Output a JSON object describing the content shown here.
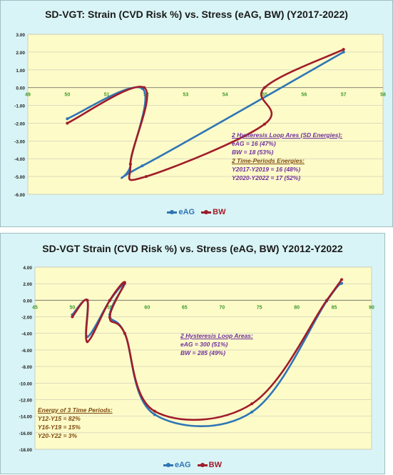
{
  "colors": {
    "eAG": "#2e75b6",
    "BW": "#a01c2a",
    "plot_bg": "#fdfbc8",
    "panel_bg": "#d9f4f6",
    "x_tick": "#3d9a2c",
    "ann_purple": "#7030a0",
    "ann_brown": "#7f4b12"
  },
  "chart_data": [
    {
      "type": "line",
      "title": "SD-VGT:  Strain (CVD Risk %) vs. Stress (eAG, BW)  (Y2017-2022)",
      "xlim": [
        49,
        58
      ],
      "ylim": [
        -6,
        3
      ],
      "x_ticks": [
        "49",
        "50",
        "51",
        "52",
        "53",
        "54",
        "55",
        "56",
        "57",
        "58"
      ],
      "y_ticks": [
        "3.00",
        "2.00",
        "1.00",
        "0.00",
        "-1.00",
        "-2.00",
        "-3.00",
        "-4.00",
        "-5.00",
        "-6.00"
      ],
      "grid": "horizontal",
      "legend": "bottom",
      "series": [
        {
          "name": "eAG",
          "points": [
            [
              50,
              -1.75
            ],
            [
              51.9,
              -0.05
            ],
            [
              51.6,
              -4.3
            ],
            [
              51.9,
              -4.4
            ],
            [
              57,
              2.0
            ]
          ]
        },
        {
          "name": "BW",
          "points": [
            [
              50,
              -2.0
            ],
            [
              51.95,
              0.0
            ],
            [
              51.6,
              -4.3
            ],
            [
              52,
              -5.0
            ],
            [
              55,
              -2.05
            ],
            [
              55,
              0.0
            ],
            [
              57,
              2.15
            ]
          ]
        }
      ],
      "annotations": [
        {
          "text": "2 Hysteresis Loop Ares (SD Energies):",
          "underline": true,
          "color": "purple"
        },
        {
          "text": "eAG = 16 (47%)",
          "color": "purple"
        },
        {
          "text": "BW = 18 (53%)",
          "color": "purple"
        },
        {
          "text": "2 Time-Periods Energies:",
          "underline": true,
          "color": "brown"
        },
        {
          "text": "Y2017-Y2019 = 16 (48%)",
          "color": "purple"
        },
        {
          "text": "Y2020-Y2022 = 17 (52%)",
          "color": "purple"
        }
      ]
    },
    {
      "type": "line",
      "title": "SD-VGT Strain (CVD Risk %) vs. Stress (eAG, BW)  Y2012-Y2022",
      "xlim": [
        45,
        90
      ],
      "ylim": [
        -18,
        4
      ],
      "x_ticks": [
        "45",
        "50",
        "55",
        "60",
        "65",
        "70",
        "75",
        "80",
        "85",
        "90"
      ],
      "y_ticks": [
        "4.00",
        "2.00",
        "0.00",
        "-2.00",
        "-4.00",
        "-6.00",
        "-8.00",
        "-10.00",
        "-12.00",
        "-14.00",
        "-16.00",
        "-18.00"
      ],
      "grid": "horizontal",
      "legend": "bottom",
      "series": [
        {
          "name": "eAG",
          "points": [
            [
              50,
              -1.75
            ],
            [
              52,
              0.0
            ],
            [
              52,
              -4.4
            ],
            [
              55,
              -0.05
            ],
            [
              57,
              2.0
            ],
            [
              55,
              -1.75
            ],
            [
              57,
              -4.0
            ],
            [
              61,
              -13.8
            ],
            [
              74,
              -13.5
            ],
            [
              84,
              -0.1
            ],
            [
              86,
              2.05
            ]
          ]
        },
        {
          "name": "BW",
          "points": [
            [
              50,
              -2.0
            ],
            [
              52,
              0.0
            ],
            [
              52,
              -5.0
            ],
            [
              55,
              0.0
            ],
            [
              57,
              2.15
            ],
            [
              55,
              -2.05
            ],
            [
              57,
              -4.0
            ],
            [
              61,
              -13.4
            ],
            [
              74,
              -12.5
            ],
            [
              84,
              0.0
            ],
            [
              86,
              2.5
            ]
          ]
        }
      ],
      "annotations": [
        {
          "text": "2 Hysteresis Loop Areas:",
          "underline": true,
          "color": "purple"
        },
        {
          "text": "eAG = 300 (51%)",
          "color": "purple"
        },
        {
          "text": "BW = 285 (49%)",
          "color": "purple"
        },
        {
          "text": "Energy of 3 Time Periods:",
          "underline": true,
          "color": "brown"
        },
        {
          "text": "Y12-Y15 = 82%",
          "color": "brown"
        },
        {
          "text": "Y16-Y19 = 15%",
          "color": "brown"
        },
        {
          "text": "Y20-Y22 =  3%",
          "color": "brown"
        }
      ]
    }
  ]
}
